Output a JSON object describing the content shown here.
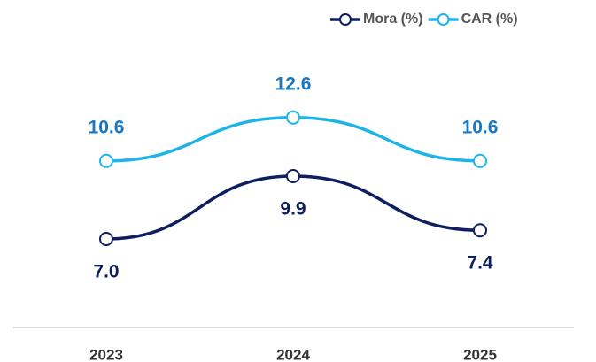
{
  "chart_data": {
    "type": "line",
    "categories": [
      "2023",
      "2024",
      "2025"
    ],
    "series": [
      {
        "name": "Mora (%)",
        "color": "#0d1f5c",
        "values": [
          7.0,
          9.9,
          7.4
        ],
        "value_labels": [
          "7.0",
          "9.9",
          "7.4"
        ],
        "label_position": "below"
      },
      {
        "name": "CAR (%)",
        "color": "#1fb4e8",
        "values": [
          10.6,
          12.6,
          10.6
        ],
        "value_labels": [
          "10.6",
          "12.6",
          "10.6"
        ],
        "label_position": "above"
      }
    ],
    "ylim": [
      3,
      15
    ],
    "legend": "top-right"
  }
}
